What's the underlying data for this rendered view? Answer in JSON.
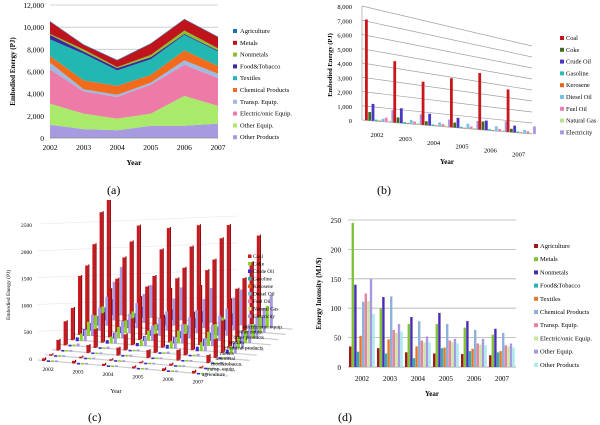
{
  "captions": [
    "(a)",
    "(b)",
    "(c)",
    "(d)"
  ],
  "chart_data": [
    {
      "id": "a",
      "type": "area",
      "stacked": true,
      "title": "",
      "xlabel": "Year",
      "ylabel": "Embodied Energy (PJ)",
      "x": [
        "2002",
        "2003",
        "2004",
        "2005",
        "2006",
        "2007"
      ],
      "ylim": [
        0,
        12000
      ],
      "yticks": [
        "0",
        "2,000",
        "4,000",
        "6,000",
        "8,000",
        "10,000",
        "12,000"
      ],
      "legend": "right",
      "series": [
        {
          "name": "Agriculture",
          "color": "#1f6fb4",
          "values": [
            50,
            50,
            50,
            50,
            50,
            50
          ]
        },
        {
          "name": "Metals",
          "color": "#c0141c",
          "values": [
            1100,
            400,
            600,
            1000,
            1000,
            1000
          ]
        },
        {
          "name": "Nonmetals",
          "color": "#8cbf2a",
          "values": [
            100,
            200,
            100,
            200,
            300,
            200
          ]
        },
        {
          "name": "Food&Tobacco",
          "color": "#3a2a9c",
          "values": [
            400,
            200,
            200,
            200,
            100,
            100
          ]
        },
        {
          "name": "Textiles",
          "color": "#22b7b0",
          "values": [
            1500,
            2400,
            1400,
            1400,
            1400,
            1300
          ]
        },
        {
          "name": "Chemical Products",
          "color": "#f26a1b",
          "values": [
            600,
            800,
            800,
            700,
            900,
            700
          ]
        },
        {
          "name": "Transp. Equip.",
          "color": "#9fb9e0",
          "values": [
            600,
            200,
            200,
            200,
            400,
            400
          ]
        },
        {
          "name": "Electric/onic Equip.",
          "color": "#ee7aa7",
          "values": [
            3100,
            2000,
            1950,
            2600,
            2800,
            2500
          ]
        },
        {
          "name": "Other Equip.",
          "color": "#a9ea6a",
          "values": [
            1900,
            1400,
            1050,
            1100,
            2700,
            1600
          ]
        },
        {
          "name": "Other Products",
          "color": "#a89ae0",
          "values": [
            1200,
            800,
            700,
            1100,
            1100,
            1300
          ]
        }
      ]
    },
    {
      "id": "b",
      "type": "bar",
      "title": "",
      "xlabel": "Year",
      "ylabel": "Embodied Energy (PJ)",
      "categories": [
        "2002",
        "2003",
        "2004",
        "2005",
        "2006",
        "2007"
      ],
      "ylim": [
        0,
        8000
      ],
      "yticks": [
        "0",
        "1,000",
        "2,000",
        "3,000",
        "4,000",
        "5,000",
        "6,000",
        "7,000",
        "8,000"
      ],
      "legend": "right",
      "series": [
        {
          "name": "Coal",
          "color": "#c8181e",
          "values": [
            7100,
            4500,
            3300,
            3900,
            4700,
            3700
          ]
        },
        {
          "name": "Coke",
          "color": "#3d6b22",
          "values": [
            600,
            400,
            300,
            400,
            700,
            300
          ]
        },
        {
          "name": "Crude Oil",
          "color": "#4a36c4",
          "values": [
            1200,
            1100,
            900,
            800,
            800,
            600
          ]
        },
        {
          "name": "Gasoline",
          "color": "#2bbab5",
          "values": [
            100,
            100,
            100,
            100,
            100,
            100
          ]
        },
        {
          "name": "Kerosene",
          "color": "#e8601a",
          "values": [
            50,
            50,
            50,
            50,
            50,
            50
          ]
        },
        {
          "name": "Diesel Oil",
          "color": "#74c4e8",
          "values": [
            200,
            300,
            300,
            400,
            400,
            300
          ]
        },
        {
          "name": "Fuel Oil",
          "color": "#e77fb1",
          "values": [
            300,
            200,
            200,
            200,
            200,
            200
          ]
        },
        {
          "name": "Natural Gas",
          "color": "#b6e38a",
          "values": [
            100,
            100,
            100,
            100,
            100,
            100
          ]
        },
        {
          "name": "Electricity",
          "color": "#a898e2",
          "values": [
            900,
            800,
            600,
            700,
            900,
            700
          ]
        }
      ]
    },
    {
      "id": "c",
      "type": "bar",
      "subtype": "3d-bar",
      "title": "",
      "xlabel": "Year",
      "ylabel": "Embodied Energy (PJ)",
      "categories": [
        "2002",
        "2003",
        "2004",
        "2005",
        "2006",
        "2007"
      ],
      "depth_categories": [
        "agriculture",
        "transp. equip.",
        "food&tobacco",
        "nonmetal",
        "metals",
        "chemical products",
        "textiles",
        "other products",
        "other equip.",
        "electric/onic equip."
      ],
      "ylim": [
        0,
        2500
      ],
      "yticks": [
        "0",
        "500",
        "1000",
        "1500",
        "2000",
        "2500"
      ],
      "legend": "right",
      "series": [
        {
          "name": "Coal",
          "color": "#c8181e"
        },
        {
          "name": "Coke",
          "color": "#8cd12a"
        },
        {
          "name": "Crude Oil",
          "color": "#3a2ad0"
        },
        {
          "name": "Gasoline",
          "color": "#26b6ae"
        },
        {
          "name": "Kerosene",
          "color": "#e8601a"
        },
        {
          "name": "Diesel Oil",
          "color": "#74c4e8"
        },
        {
          "name": "Fuel Oil",
          "color": "#e77fb1"
        },
        {
          "name": "Natural Gas",
          "color": "#c6e89a"
        },
        {
          "name": "Electricity",
          "color": "#a898e2"
        }
      ],
      "coal_values_by_year": [
        [
          50,
          30,
          200,
          450,
          600,
          1100,
          1200,
          1500,
          2000,
          2500
        ],
        [
          50,
          30,
          150,
          350,
          550,
          900,
          1000,
          1300,
          1500,
          1700
        ],
        [
          40,
          30,
          150,
          300,
          500,
          800,
          900,
          1000,
          1400,
          1700
        ],
        [
          40,
          30,
          150,
          350,
          600,
          1000,
          1100,
          1200,
          1500,
          1800
        ],
        [
          50,
          40,
          200,
          400,
          700,
          1100,
          1300,
          1400,
          1700,
          1850
        ],
        [
          50,
          30,
          150,
          350,
          600,
          900,
          1000,
          1100,
          1300,
          1700
        ]
      ]
    },
    {
      "id": "d",
      "type": "bar",
      "title": "",
      "xlabel": "Year",
      "ylabel": "Energy Intensity (MJ/$)",
      "categories": [
        "2002",
        "2003",
        "2004",
        "2005",
        "2006",
        "2007"
      ],
      "ylim": [
        0,
        250
      ],
      "yticks": [
        "0",
        "50",
        "100",
        "150",
        "200",
        "250"
      ],
      "legend": "right",
      "series": [
        {
          "name": "Agriculture",
          "color": "#a01818",
          "values": [
            35,
            32,
            25,
            23,
            22,
            20
          ]
        },
        {
          "name": "Metals",
          "color": "#7fc23b",
          "values": [
            245,
            100,
            73,
            73,
            67,
            55
          ]
        },
        {
          "name": "Nonmetals",
          "color": "#4a2cb0",
          "values": [
            140,
            119,
            85,
            92,
            78,
            65
          ]
        },
        {
          "name": "Food&Tobacco",
          "color": "#24b2ba",
          "values": [
            26,
            23,
            15,
            32,
            27,
            25
          ]
        },
        {
          "name": "Textiles",
          "color": "#e8772a",
          "values": [
            53,
            47,
            35,
            33,
            31,
            27
          ]
        },
        {
          "name": "Chemical Products",
          "color": "#8eb1db",
          "values": [
            111,
            120,
            78,
            73,
            63,
            58
          ]
        },
        {
          "name": "Transp. Equip.",
          "color": "#e8829e",
          "values": [
            125,
            63,
            45,
            45,
            40,
            37
          ]
        },
        {
          "name": "Electric/onic Equip.",
          "color": "#c8e89a",
          "values": [
            112,
            58,
            42,
            42,
            38,
            35
          ]
        },
        {
          "name": "Other Equip.",
          "color": "#a898e2",
          "values": [
            150,
            73,
            52,
            48,
            48,
            40
          ]
        },
        {
          "name": "Other Products",
          "color": "#a8ecee",
          "values": [
            90,
            60,
            42,
            40,
            37,
            33
          ]
        }
      ]
    }
  ]
}
